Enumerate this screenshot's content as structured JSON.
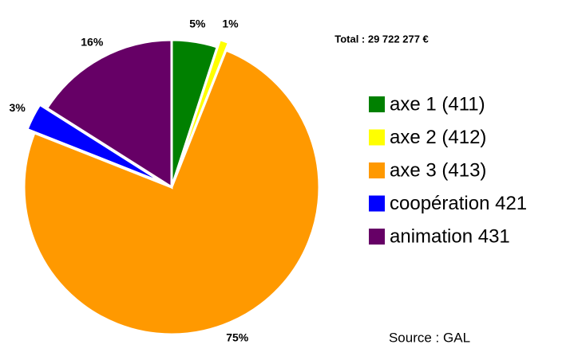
{
  "chart_data": {
    "type": "pie",
    "title": "Total : 29 722 277 €",
    "source": "Source : GAL",
    "categories": [
      "axe 1 (411)",
      "axe 2 (412)",
      "axe 3 (413)",
      "coopération 421",
      "animation 431"
    ],
    "values": [
      5,
      1,
      75,
      3,
      16
    ],
    "value_labels": [
      "5%",
      "1%",
      "75%",
      "3%",
      "16%"
    ],
    "colors": [
      "#008000",
      "#ffff00",
      "#ff9900",
      "#0000ff",
      "#660066"
    ],
    "exploded": [
      false,
      true,
      false,
      true,
      false
    ],
    "legend": "right"
  }
}
